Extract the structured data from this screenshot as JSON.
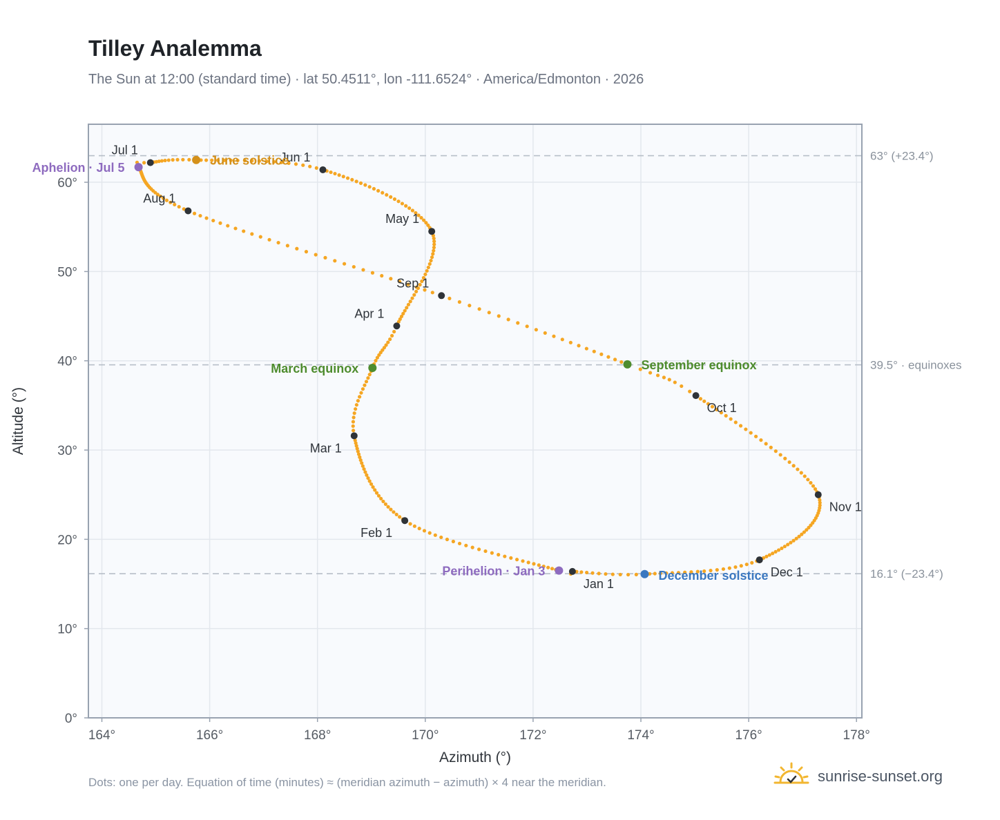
{
  "title": "Tilley Analemma",
  "subtitle": "The Sun at 12:00 (standard time) · lat 50.4511°, lon -111.6524° · America/Edmonton · 2026",
  "footnote": "Dots: one per day. Equation of time (minutes) ≈ (meridian azimuth − azimuth) × 4 near the meridian.",
  "brand": "sunrise-sunset.org",
  "colors": {
    "curve": "#f5a623",
    "month_dot": "#2f3338",
    "perihelion": "#8e6bbf",
    "june": "#d4901a",
    "equinox": "#4e8c2e",
    "december": "#3b78c0",
    "plot_bg": "#f8fafd",
    "grid": "#e3e7ed",
    "frame": "#98a2b0"
  },
  "icons": {
    "brand": "sun-rising-icon"
  },
  "chart_data": {
    "type": "scatter",
    "xlabel": "Azimuth (°)",
    "ylabel": "Altitude (°)",
    "xlim": [
      163.75,
      178.1
    ],
    "ylim": [
      0,
      66.5
    ],
    "x_ticks": [
      "164°",
      "166°",
      "168°",
      "170°",
      "172°",
      "174°",
      "176°",
      "178°"
    ],
    "y_ticks": [
      "0°",
      "10°",
      "20°",
      "30°",
      "40°",
      "50°",
      "60°"
    ],
    "grid": true,
    "reference_lines": [
      {
        "y": 62.98,
        "label": "63° (+23.4°)"
      },
      {
        "y": 39.55,
        "label": "39.5° · equinoxes"
      },
      {
        "y": 16.15,
        "label": "16.1° (−23.4°)"
      }
    ],
    "months": [
      {
        "label": "Jan 1",
        "x": 172.73,
        "y": 16.4
      },
      {
        "label": "Feb 1",
        "x": 169.62,
        "y": 22.1
      },
      {
        "label": "Mar 1",
        "x": 168.68,
        "y": 31.6
      },
      {
        "label": "Apr 1",
        "x": 169.47,
        "y": 43.9
      },
      {
        "label": "May 1",
        "x": 170.12,
        "y": 54.5
      },
      {
        "label": "Jun 1",
        "x": 168.1,
        "y": 61.4
      },
      {
        "label": "Jul 1",
        "x": 164.9,
        "y": 62.2
      },
      {
        "label": "Aug 1",
        "x": 165.6,
        "y": 56.8
      },
      {
        "label": "Sep 1",
        "x": 170.3,
        "y": 47.3
      },
      {
        "label": "Oct 1",
        "x": 175.02,
        "y": 36.1
      },
      {
        "label": "Nov 1",
        "x": 177.29,
        "y": 25.0
      },
      {
        "label": "Dec 1",
        "x": 176.2,
        "y": 17.7
      }
    ],
    "events": [
      {
        "label": "Perihelion · Jan 3",
        "x": 172.48,
        "y": 16.5,
        "color": "#8e6bbf"
      },
      {
        "label": "March equinox",
        "x": 169.02,
        "y": 39.2,
        "color": "#4e8c2e"
      },
      {
        "label": "June solstice",
        "x": 165.75,
        "y": 62.5,
        "color": "#d4901a"
      },
      {
        "label": "Aphelion · Jul 5",
        "x": 164.68,
        "y": 61.7,
        "color": "#8e6bbf"
      },
      {
        "label": "September equinox",
        "x": 173.75,
        "y": 39.6,
        "color": "#4e8c2e"
      },
      {
        "label": "December solstice",
        "x": 174.07,
        "y": 16.1,
        "color": "#3b78c0"
      }
    ]
  }
}
